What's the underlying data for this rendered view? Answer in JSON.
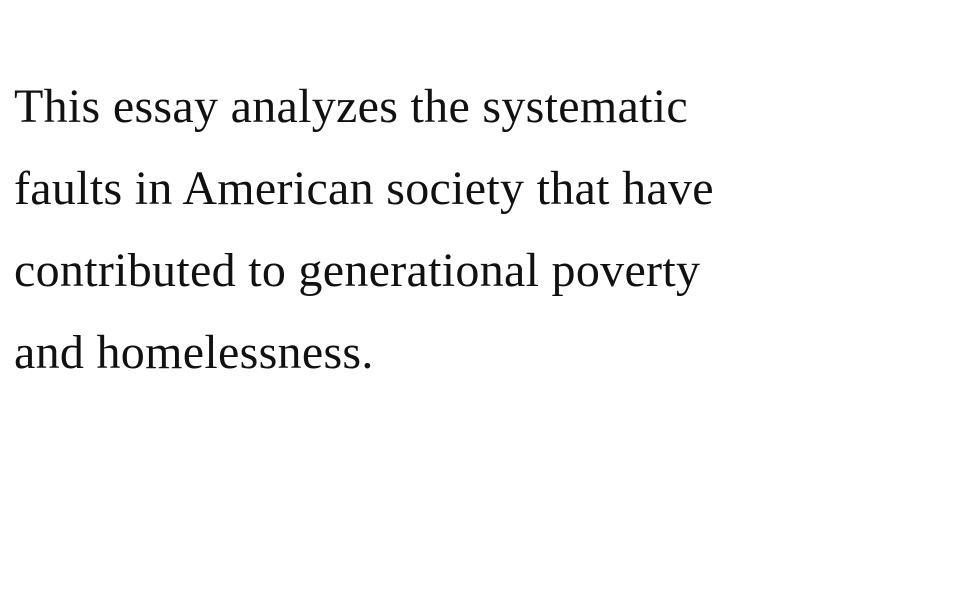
{
  "abstract": {
    "lines": [
      "This essay analyzes the systematic",
      "faults in American society that have",
      "contributed to generational poverty",
      "and homelessness."
    ]
  }
}
